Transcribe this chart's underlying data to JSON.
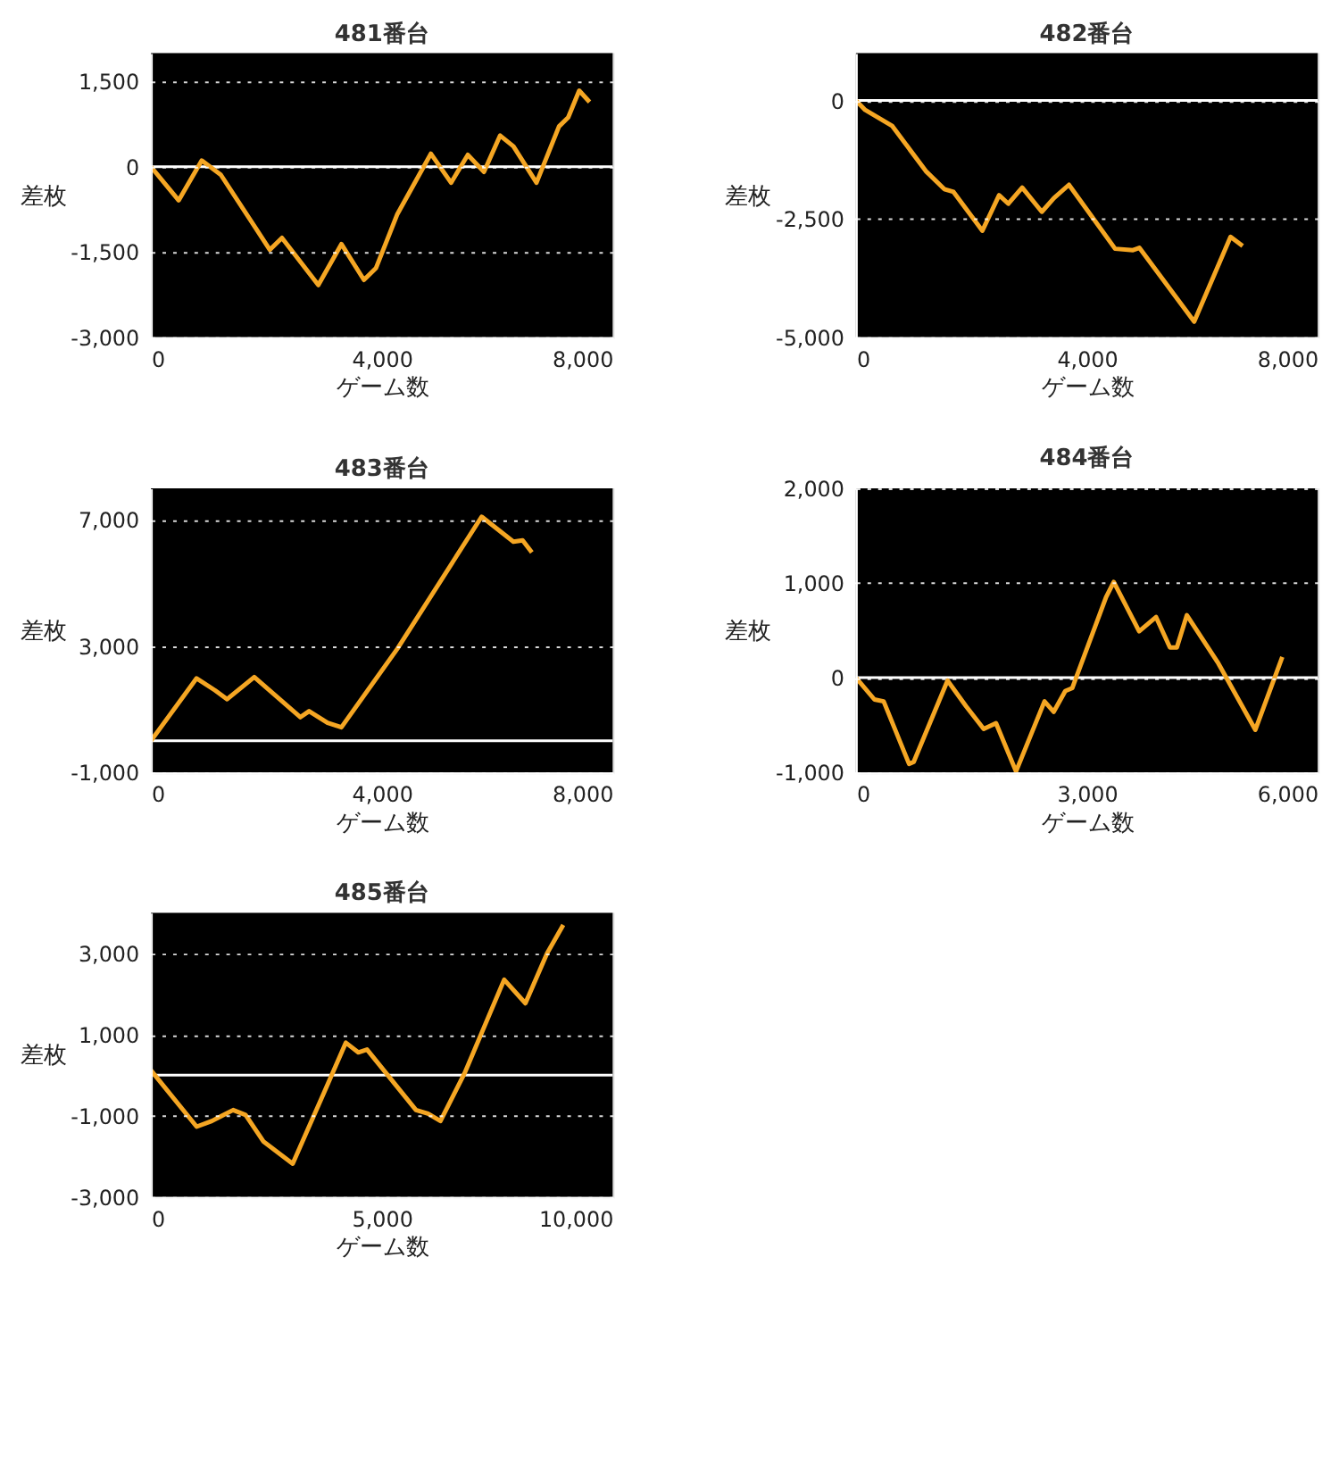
{
  "chart_data": [
    {
      "type": "line",
      "title": "481番台",
      "xlabel": "ゲーム数",
      "ylabel": "差枚",
      "xlim": [
        0,
        8000
      ],
      "ylim": [
        -3000,
        2000
      ],
      "xticks": [
        0,
        {
          "value": 4000,
          "label": "4,000"
        },
        {
          "value": 8000,
          "label": "8,000"
        }
      ],
      "yticks": [
        {
          "value": -3000,
          "label": "-3,000"
        },
        {
          "value": -1500,
          "label": "-1,500"
        },
        0,
        {
          "value": 1500,
          "label": "1,500"
        }
      ],
      "grid": "y",
      "ref_lines": [
        {
          "axis": "y",
          "value": 0,
          "color": "#ffffff"
        }
      ],
      "series": [
        {
          "color": "#f5a623",
          "x": [
            0,
            480,
            880,
            1210,
            2060,
            2270,
            2900,
            3300,
            3690,
            3900,
            4270,
            4850,
            5200,
            5490,
            5770,
            6050,
            6280,
            6680,
            7070,
            7230,
            7420,
            7600
          ],
          "values": [
            0,
            -590,
            110,
            -140,
            -1460,
            -1250,
            -2080,
            -1360,
            -1990,
            -1780,
            -830,
            230,
            -280,
            210,
            -90,
            550,
            360,
            -280,
            710,
            870,
            1340,
            1140
          ]
        }
      ]
    },
    {
      "type": "line",
      "title": "482番台",
      "xlabel": "ゲーム数",
      "ylabel": "差枚",
      "xlim": [
        0,
        8000
      ],
      "ylim": [
        -5000,
        1000
      ],
      "xticks": [
        0,
        {
          "value": 4000,
          "label": "4,000"
        },
        {
          "value": 8000,
          "label": "8,000"
        }
      ],
      "yticks": [
        {
          "value": -5000,
          "label": "-5,000"
        },
        {
          "value": -2500,
          "label": "-2,500"
        },
        0
      ],
      "grid": "y",
      "ref_lines": [
        {
          "axis": "y",
          "value": 0,
          "color": "#ffffff"
        }
      ],
      "series": [
        {
          "color": "#f5a623",
          "x": [
            0,
            160,
            630,
            1210,
            1530,
            1690,
            2190,
            2480,
            2640,
            2880,
            3220,
            3430,
            3690,
            4490,
            4800,
            4910,
            5860,
            6490,
            6700
          ],
          "values": [
            0,
            -200,
            -540,
            -1490,
            -1870,
            -1930,
            -2750,
            -2000,
            -2180,
            -1840,
            -2350,
            -2060,
            -1780,
            -3130,
            -3160,
            -3110,
            -4670,
            -2880,
            -3070
          ]
        }
      ]
    },
    {
      "type": "line",
      "title": "483番台",
      "xlabel": "ゲーム数",
      "ylabel": "差枚",
      "xlim": [
        0,
        8000
      ],
      "ylim": [
        -1000,
        8000
      ],
      "xticks": [
        0,
        {
          "value": 4000,
          "label": "4,000"
        },
        {
          "value": 8000,
          "label": "8,000"
        }
      ],
      "yticks": [
        {
          "value": -1000,
          "label": "-1,000"
        },
        {
          "value": 3000,
          "label": "3,000"
        },
        {
          "value": 7000,
          "label": "7,000"
        }
      ],
      "grid": "y",
      "ref_lines": [
        {
          "axis": "y",
          "value": 0,
          "color": "#ffffff"
        }
      ],
      "series": [
        {
          "color": "#f5a623",
          "x": [
            0,
            790,
            1110,
            1320,
            1790,
            2590,
            2740,
            3060,
            3300,
            4270,
            5730,
            6280,
            6440,
            6600
          ],
          "values": [
            0,
            1980,
            1600,
            1320,
            2020,
            750,
            940,
            570,
            430,
            2920,
            7100,
            6310,
            6350,
            5970
          ]
        }
      ]
    },
    {
      "type": "line",
      "title": "484番台",
      "xlabel": "ゲーム数",
      "ylabel": "差枚",
      "xlim": [
        0,
        6000
      ],
      "ylim": [
        -1000,
        2000
      ],
      "xticks": [
        0,
        {
          "value": 3000,
          "label": "3,000"
        },
        {
          "value": 6000,
          "label": "6,000"
        }
      ],
      "yticks": [
        {
          "value": -1000,
          "label": "-1,000"
        },
        0,
        {
          "value": 1000,
          "label": "1,000"
        },
        {
          "value": 2000,
          "label": "2,000"
        }
      ],
      "grid": "y",
      "ref_lines": [
        {
          "axis": "y",
          "value": 0,
          "color": "#ffffff"
        }
      ],
      "series": [
        {
          "color": "#f5a623",
          "x": [
            0,
            240,
            360,
            690,
            750,
            1190,
            1430,
            1660,
            1820,
            2080,
            2450,
            2570,
            2720,
            2810,
            3250,
            3350,
            3680,
            3900,
            4080,
            4170,
            4300,
            4710,
            5190,
            5540
          ],
          "values": [
            0,
            -230,
            -250,
            -910,
            -890,
            -30,
            -300,
            -540,
            -480,
            -990,
            -250,
            -360,
            -140,
            -110,
            850,
            1010,
            490,
            640,
            320,
            320,
            660,
            150,
            -550,
            220
          ]
        }
      ]
    },
    {
      "type": "line",
      "title": "485番台",
      "xlabel": "ゲーム数",
      "ylabel": "差枚",
      "xlim": [
        0,
        10000
      ],
      "ylim": [
        -3000,
        4000
      ],
      "xticks": [
        0,
        {
          "value": 5000,
          "label": "5,000"
        },
        {
          "value": 10000,
          "label": "10,000"
        }
      ],
      "yticks": [
        {
          "value": -3000,
          "label": "-3,000"
        },
        {
          "value": -1000,
          "label": "-1,000"
        },
        {
          "value": 1000,
          "label": "1,000"
        },
        {
          "value": 3000,
          "label": "3,000"
        }
      ],
      "grid": "y",
      "ref_lines": [
        {
          "axis": "y",
          "value": 0,
          "color": "#ffffff"
        }
      ],
      "series": [
        {
          "color": "#f5a623",
          "x": [
            0,
            990,
            1320,
            1520,
            1780,
            2050,
            2440,
            3070,
            3760,
            4220,
            4490,
            4680,
            5740,
            6000,
            6270,
            6790,
            7650,
            8110,
            8580,
            8930
          ],
          "values": [
            120,
            -1270,
            -1130,
            -1010,
            -860,
            -980,
            -1640,
            -2180,
            -400,
            800,
            560,
            630,
            -860,
            -950,
            -1130,
            40,
            2350,
            1770,
            3000,
            3700
          ]
        }
      ]
    }
  ]
}
